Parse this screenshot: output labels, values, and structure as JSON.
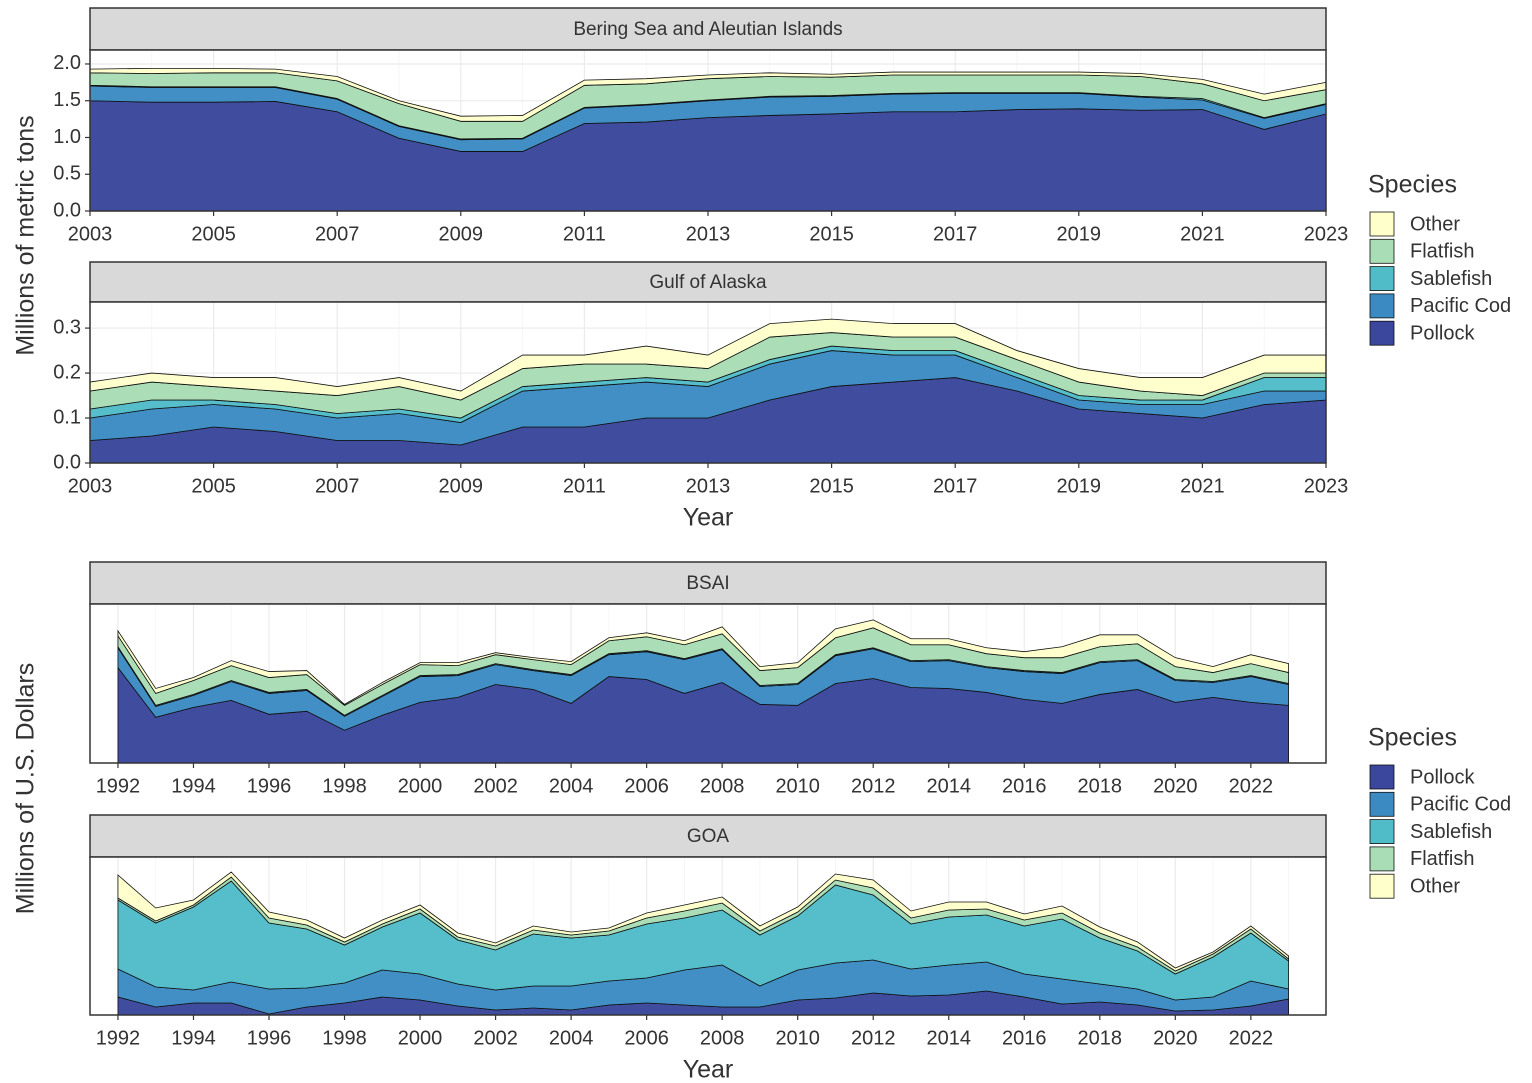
{
  "chart_data": [
    {
      "type": "stacked_area",
      "title": "Bering Sea and Aleutian Islands",
      "ylabel": "Millions of metric tons",
      "legend_title": "Species",
      "legend_order": "reverse",
      "x": [
        2003,
        2004,
        2005,
        2006,
        2007,
        2008,
        2009,
        2010,
        2011,
        2012,
        2013,
        2014,
        2015,
        2016,
        2017,
        2018,
        2019,
        2020,
        2021,
        2022,
        2023
      ],
      "xlim": [
        2003,
        2023
      ],
      "xticks": [
        2003,
        2005,
        2007,
        2009,
        2011,
        2013,
        2015,
        2017,
        2019,
        2021,
        2023
      ],
      "ylim": [
        0,
        2.19
      ],
      "yticks": [
        {
          "value": 0,
          "label": "0.0"
        },
        0.5,
        {
          "value": 1,
          "label": "1.0"
        },
        1.5,
        {
          "value": 2,
          "label": "2.0"
        }
      ],
      "grid": true,
      "series": [
        {
          "name": "Pollock",
          "color": "#3a479c",
          "values": [
            1.5,
            1.48,
            1.48,
            1.49,
            1.35,
            0.99,
            0.81,
            0.81,
            1.19,
            1.21,
            1.27,
            1.3,
            1.32,
            1.35,
            1.35,
            1.38,
            1.39,
            1.37,
            1.38,
            1.11,
            1.32
          ]
        },
        {
          "name": "Pacific Cod",
          "color": "#3b8bc2",
          "values": [
            0.2,
            0.2,
            0.2,
            0.19,
            0.17,
            0.16,
            0.16,
            0.17,
            0.21,
            0.23,
            0.23,
            0.25,
            0.24,
            0.24,
            0.25,
            0.22,
            0.21,
            0.18,
            0.13,
            0.15,
            0.13
          ]
        },
        {
          "name": "Sablefish",
          "color": "#4fbcc8",
          "values": [
            0.01,
            0.01,
            0.01,
            0.01,
            0.01,
            0.01,
            0.01,
            0.01,
            0.01,
            0.01,
            0.01,
            0.01,
            0.01,
            0.01,
            0.01,
            0.01,
            0.01,
            0.01,
            0.02,
            0.01,
            0.01
          ]
        },
        {
          "name": "Flatfish",
          "color": "#a8ddb5",
          "values": [
            0.17,
            0.18,
            0.19,
            0.19,
            0.24,
            0.3,
            0.24,
            0.23,
            0.3,
            0.28,
            0.29,
            0.27,
            0.25,
            0.25,
            0.24,
            0.24,
            0.24,
            0.27,
            0.2,
            0.23,
            0.19
          ]
        },
        {
          "name": "Other",
          "color": "#ffffcc",
          "values": [
            0.05,
            0.07,
            0.06,
            0.05,
            0.06,
            0.04,
            0.07,
            0.08,
            0.07,
            0.07,
            0.05,
            0.05,
            0.04,
            0.04,
            0.04,
            0.04,
            0.04,
            0.04,
            0.06,
            0.09,
            0.1
          ]
        }
      ]
    },
    {
      "type": "stacked_area",
      "title": "Gulf of Alaska",
      "xlabel": "Year",
      "x": [
        2003,
        2004,
        2005,
        2006,
        2007,
        2008,
        2009,
        2010,
        2011,
        2012,
        2013,
        2014,
        2015,
        2016,
        2017,
        2018,
        2019,
        2020,
        2021,
        2022,
        2023
      ],
      "xlim": [
        2003,
        2023
      ],
      "xticks": [
        2003,
        2005,
        2007,
        2009,
        2011,
        2013,
        2015,
        2017,
        2019,
        2021,
        2023
      ],
      "ylim": [
        0,
        0.358
      ],
      "yticks": [
        {
          "value": 0,
          "label": "0.0"
        },
        0.1,
        0.2,
        0.3
      ],
      "grid": true,
      "series": [
        {
          "name": "Pollock",
          "color": "#3a479c",
          "values": [
            0.05,
            0.06,
            0.08,
            0.07,
            0.05,
            0.05,
            0.04,
            0.08,
            0.08,
            0.1,
            0.1,
            0.14,
            0.17,
            0.18,
            0.19,
            0.16,
            0.12,
            0.11,
            0.1,
            0.13,
            0.14
          ]
        },
        {
          "name": "Pacific Cod",
          "color": "#3b8bc2",
          "values": [
            0.05,
            0.06,
            0.05,
            0.05,
            0.05,
            0.06,
            0.05,
            0.08,
            0.09,
            0.08,
            0.07,
            0.08,
            0.08,
            0.06,
            0.05,
            0.03,
            0.02,
            0.02,
            0.03,
            0.03,
            0.02
          ]
        },
        {
          "name": "Sablefish",
          "color": "#4fbcc8",
          "values": [
            0.02,
            0.02,
            0.01,
            0.01,
            0.01,
            0.01,
            0.01,
            0.01,
            0.01,
            0.01,
            0.01,
            0.01,
            0.01,
            0.01,
            0.01,
            0.01,
            0.01,
            0.01,
            0.01,
            0.03,
            0.03
          ]
        },
        {
          "name": "Flatfish",
          "color": "#a8ddb5",
          "values": [
            0.04,
            0.04,
            0.03,
            0.03,
            0.04,
            0.05,
            0.04,
            0.04,
            0.04,
            0.03,
            0.03,
            0.05,
            0.03,
            0.03,
            0.03,
            0.03,
            0.03,
            0.02,
            0.01,
            0.01,
            0.01
          ]
        },
        {
          "name": "Other",
          "color": "#ffffcc",
          "values": [
            0.02,
            0.02,
            0.02,
            0.03,
            0.02,
            0.02,
            0.02,
            0.03,
            0.02,
            0.04,
            0.03,
            0.03,
            0.03,
            0.03,
            0.03,
            0.02,
            0.03,
            0.03,
            0.04,
            0.04,
            0.04
          ]
        }
      ]
    },
    {
      "type": "stacked_area",
      "title": "BSAI",
      "ylabel": "Millions of U.S. Dollars",
      "legend_title": "Species",
      "legend_order": "forward",
      "x": [
        1992,
        1993,
        1994,
        1995,
        1996,
        1997,
        1998,
        1999,
        2000,
        2001,
        2002,
        2003,
        2004,
        2005,
        2006,
        2007,
        2008,
        2009,
        2010,
        2011,
        2012,
        2013,
        2014,
        2015,
        2016,
        2017,
        2018,
        2019,
        2020,
        2021,
        2022,
        2023
      ],
      "xlim": [
        1991.26,
        2023.99
      ],
      "xticks": [
        1992,
        1994,
        1996,
        1998,
        2000,
        2002,
        2004,
        2006,
        2008,
        2010,
        2012,
        2014,
        2016,
        2018,
        2020,
        2022
      ],
      "ylim": [
        0,
        160
      ],
      "grid": true,
      "series": [
        {
          "name": "Pollock",
          "color": "#3a479c",
          "values": [
            96,
            46,
            56,
            63,
            49,
            52,
            33,
            48,
            61,
            66,
            79,
            74,
            60,
            87,
            84,
            70,
            81,
            59,
            58,
            80,
            85,
            76,
            75,
            71,
            64,
            60,
            69,
            74,
            61,
            66,
            61,
            58
          ]
        },
        {
          "name": "Pacific Cod",
          "color": "#3b8bc2",
          "values": [
            20,
            11,
            12,
            19,
            21,
            21,
            14,
            19,
            26,
            22,
            20,
            19,
            28,
            22,
            28,
            34,
            33,
            18,
            21,
            28,
            30,
            26,
            28,
            25,
            28,
            30,
            32,
            29,
            22,
            15,
            26,
            21
          ]
        },
        {
          "name": "Sablefish",
          "color": "#4fbcc8",
          "values": [
            1,
            1,
            1,
            1,
            1,
            1,
            1,
            1,
            1,
            1,
            1,
            1,
            1,
            1,
            1,
            1,
            1,
            1,
            1,
            1,
            1,
            1,
            1,
            1,
            1,
            1,
            1,
            1,
            1,
            1,
            1,
            1
          ]
        },
        {
          "name": "Flatfish",
          "color": "#a8ddb5",
          "values": [
            11,
            12,
            14,
            15,
            15,
            15,
            10,
            11,
            11,
            9,
            9,
            10,
            10,
            13,
            14,
            14,
            15,
            15,
            16,
            17,
            20,
            16,
            15,
            13,
            13,
            15,
            15,
            16,
            13,
            9,
            12,
            11
          ]
        },
        {
          "name": "Other",
          "color": "#ffffcc",
          "values": [
            5,
            5,
            3,
            5,
            6,
            4,
            1,
            2,
            2,
            3,
            2,
            2,
            3,
            3,
            4,
            4,
            7,
            4,
            5,
            9,
            8,
            6,
            6,
            6,
            6,
            11,
            12,
            9,
            9,
            6,
            9,
            9
          ]
        }
      ]
    },
    {
      "type": "stacked_area",
      "title": "GOA",
      "xlabel": "Year",
      "x": [
        1992,
        1993,
        1994,
        1995,
        1996,
        1997,
        1998,
        1999,
        2000,
        2001,
        2002,
        2003,
        2004,
        2005,
        2006,
        2007,
        2008,
        2009,
        2010,
        2011,
        2012,
        2013,
        2014,
        2015,
        2016,
        2017,
        2018,
        2019,
        2020,
        2021,
        2022,
        2023
      ],
      "xlim": [
        1991.26,
        2023.99
      ],
      "xticks": [
        1992,
        1994,
        1996,
        1998,
        2000,
        2002,
        2004,
        2006,
        2008,
        2010,
        2012,
        2014,
        2016,
        2018,
        2020,
        2022
      ],
      "ylim": [
        0,
        158
      ],
      "grid": true,
      "series": [
        {
          "name": "Pollock",
          "color": "#3a479c",
          "values": [
            18,
            8,
            12,
            12,
            1,
            8,
            12,
            18,
            15,
            9,
            5,
            7,
            5,
            10,
            12,
            10,
            8,
            8,
            15,
            17,
            22,
            19,
            20,
            24,
            18,
            11,
            13,
            10,
            4,
            5,
            9,
            16
          ]
        },
        {
          "name": "Pacific Cod",
          "color": "#3b8bc2",
          "values": [
            28,
            20,
            13,
            21,
            25,
            19,
            20,
            27,
            26,
            22,
            20,
            22,
            24,
            24,
            25,
            35,
            42,
            21,
            30,
            35,
            33,
            27,
            30,
            29,
            23,
            25,
            18,
            16,
            11,
            13,
            25,
            10
          ]
        },
        {
          "name": "Sablefish",
          "color": "#4fbcc8",
          "values": [
            69,
            64,
            83,
            101,
            66,
            59,
            38,
            43,
            61,
            44,
            40,
            52,
            48,
            46,
            54,
            52,
            55,
            51,
            54,
            78,
            65,
            45,
            48,
            47,
            48,
            60,
            46,
            38,
            26,
            40,
            48,
            28
          ]
        },
        {
          "name": "Flatfish",
          "color": "#a8ddb5",
          "values": [
            2,
            2,
            2,
            4,
            5,
            4,
            3,
            3,
            4,
            3,
            4,
            4,
            3,
            4,
            6,
            7,
            7,
            4,
            4,
            5,
            7,
            6,
            7,
            6,
            6,
            6,
            5,
            4,
            3,
            3,
            4,
            2
          ]
        },
        {
          "name": "Other",
          "color": "#ffffcc",
          "values": [
            23,
            13,
            5,
            5,
            6,
            5,
            4,
            4,
            4,
            4,
            3,
            4,
            3,
            3,
            5,
            6,
            6,
            5,
            5,
            6,
            8,
            7,
            8,
            7,
            6,
            7,
            6,
            5,
            3,
            2,
            3,
            3
          ]
        }
      ]
    }
  ]
}
